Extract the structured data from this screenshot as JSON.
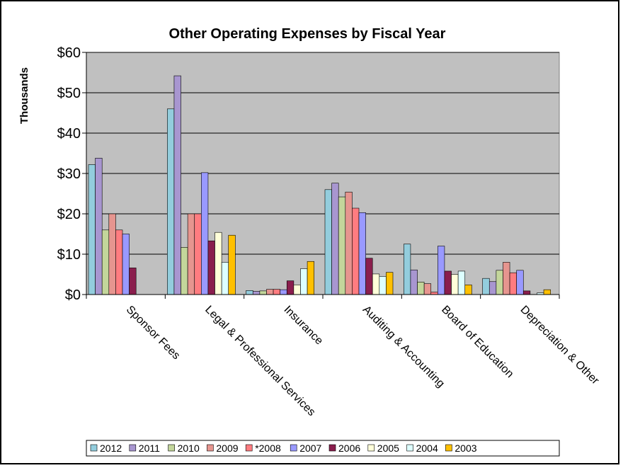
{
  "chart_data": {
    "type": "bar",
    "title": "Other Operating Expenses by Fiscal Year",
    "ylabel": "Thousands",
    "xlabel": "",
    "ylim": [
      0,
      60
    ],
    "yticks": [
      "$0",
      "$10",
      "$20",
      "$30",
      "$40",
      "$50",
      "$60"
    ],
    "grid": true,
    "legend_position": "bottom",
    "categories": [
      "Sponsor Fees",
      "Legal & Professional Services",
      "Insurance",
      "Auditing & Accounting",
      "Board of Education",
      "Depreciation  & Other"
    ],
    "series": [
      {
        "name": "2012",
        "color": "#93CDDD",
        "values": [
          32.2,
          46.0,
          1.0,
          26.0,
          12.5,
          4.0
        ]
      },
      {
        "name": "2011",
        "color": "#A896D0",
        "values": [
          33.8,
          54.2,
          0.8,
          27.6,
          6.1,
          3.2
        ]
      },
      {
        "name": "2010",
        "color": "#C3D69B",
        "values": [
          16.0,
          11.7,
          0.9,
          24.2,
          3.1,
          6.0
        ]
      },
      {
        "name": "2009",
        "color": "#E6958F",
        "values": [
          20.0,
          20.0,
          1.3,
          25.4,
          2.7,
          8.0
        ]
      },
      {
        "name": "*2008",
        "color": "#FF7C80",
        "values": [
          16.0,
          20.0,
          1.3,
          21.4,
          0.6,
          5.4
        ]
      },
      {
        "name": "2007",
        "color": "#9999FF",
        "values": [
          15.0,
          30.2,
          1.2,
          20.3,
          12.0,
          6.0
        ]
      },
      {
        "name": "2006",
        "color": "#8A1E4D",
        "values": [
          6.6,
          13.3,
          3.4,
          9.0,
          5.8,
          0.9
        ]
      },
      {
        "name": "2005",
        "color": "#FFFFD9",
        "values": [
          0,
          15.4,
          2.4,
          5.1,
          5.0,
          0
        ]
      },
      {
        "name": "2004",
        "color": "#DDFFFF",
        "values": [
          0,
          8.0,
          6.4,
          4.5,
          5.8,
          0.4
        ]
      },
      {
        "name": "2003",
        "color": "#FFC000",
        "values": [
          0,
          14.7,
          8.2,
          5.5,
          2.4,
          1.2
        ]
      }
    ],
    "colors": {
      "plot_background": "#C0C0C0",
      "gridline": "#000000"
    }
  }
}
